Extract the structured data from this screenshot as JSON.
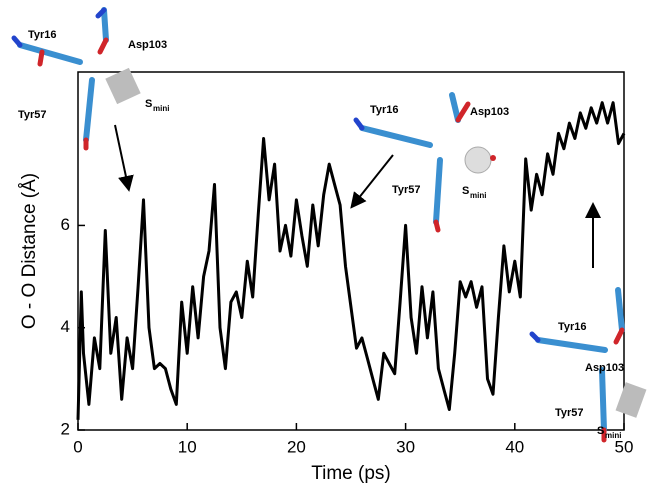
{
  "chart_data": {
    "type": "line",
    "xlabel": "Time (ps)",
    "ylabel": "O - O Distance (Å)",
    "xlim": [
      0,
      50
    ],
    "xticks": [
      0,
      10,
      20,
      30,
      40,
      50
    ],
    "ylim": [
      2,
      9
    ],
    "yticks": [
      2,
      4,
      6
    ],
    "color": "#000000",
    "x": [
      0,
      0.3,
      0.5,
      1,
      1.5,
      2,
      2.5,
      3,
      3.5,
      4,
      4.5,
      5,
      5.5,
      6,
      6.5,
      7,
      7.5,
      8,
      8.5,
      9,
      9.5,
      10,
      10.5,
      11,
      11.5,
      12,
      12.5,
      13,
      13.5,
      14,
      14.5,
      15,
      15.5,
      16,
      16.5,
      17,
      17.5,
      18,
      18.5,
      19,
      19.5,
      20,
      20.5,
      21,
      21.5,
      22,
      22.5,
      23,
      23.5,
      24,
      24.5,
      25,
      25.5,
      26,
      26.5,
      27,
      27.5,
      28,
      28.5,
      29,
      29.5,
      30,
      30.5,
      31,
      31.5,
      32,
      32.5,
      33,
      33.5,
      34,
      34.5,
      35,
      35.5,
      36,
      36.5,
      37,
      37.5,
      38,
      38.5,
      39,
      39.5,
      40,
      40.5,
      41,
      41.5,
      42,
      42.5,
      43,
      43.5,
      44,
      44.5,
      45,
      45.5,
      46,
      46.5,
      47,
      47.5,
      48,
      48.5,
      49,
      49.5,
      50
    ],
    "values": [
      2.2,
      4.7,
      3.5,
      2.5,
      3.8,
      3.2,
      5.9,
      3.5,
      4.2,
      2.6,
      3.8,
      3.2,
      4.8,
      6.5,
      4.0,
      3.2,
      3.3,
      3.2,
      2.8,
      2.5,
      4.5,
      3.5,
      4.8,
      3.8,
      5.0,
      5.5,
      6.8,
      4.0,
      3.2,
      4.5,
      4.7,
      4.2,
      5.3,
      4.6,
      6.2,
      7.7,
      6.5,
      7.2,
      5.5,
      6.0,
      5.4,
      6.5,
      5.8,
      5.2,
      6.4,
      5.6,
      6.6,
      7.2,
      6.8,
      6.4,
      5.2,
      4.4,
      3.6,
      3.8,
      3.4,
      3.0,
      2.6,
      3.5,
      3.3,
      3.1,
      4.5,
      6.0,
      4.2,
      3.5,
      4.8,
      3.8,
      4.7,
      3.2,
      2.8,
      2.4,
      3.5,
      4.9,
      4.6,
      4.9,
      4.4,
      4.8,
      3.0,
      2.7,
      4.2,
      5.6,
      4.7,
      5.3,
      4.6,
      7.3,
      6.3,
      7.0,
      6.6,
      7.4,
      7.0,
      7.8,
      7.5,
      8.0,
      7.7,
      8.2,
      7.9,
      8.3,
      8.0,
      8.4,
      8.0,
      8.4,
      7.6,
      7.8
    ],
    "annotations": [
      {
        "labels": [
          "Tyr16",
          "Asp103",
          "Tyr57"
        ],
        "s": "S",
        "s_sub": "mini"
      },
      {
        "labels": [
          "Tyr16",
          "Asp103",
          "Tyr57"
        ],
        "s": "S",
        "s_sub": "mini"
      },
      {
        "labels": [
          "Tyr16",
          "Asp103",
          "Tyr57"
        ],
        "s": "S",
        "s_sub": "mini"
      }
    ]
  }
}
